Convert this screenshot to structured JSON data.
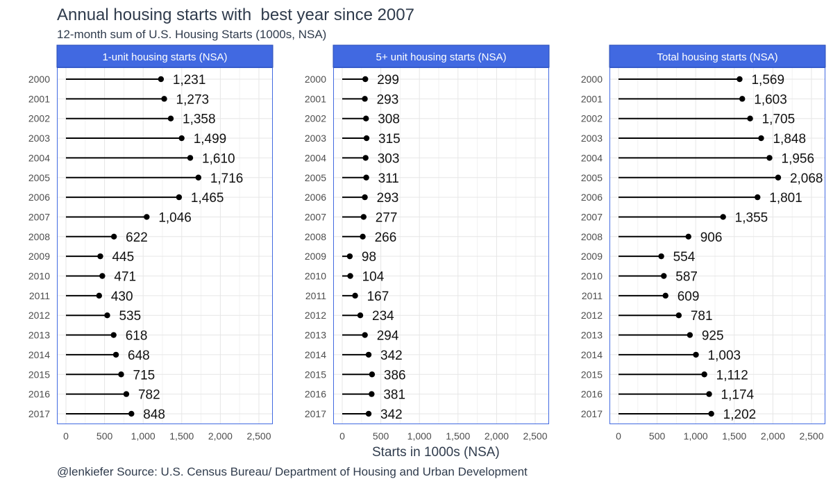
{
  "title": "Annual housing starts with  best year since 2007",
  "subtitle": "12-month sum of U.S. Housing Starts (1000s, NSA)",
  "caption": "@lenkiefer Source: U.S. Census Bureau/ Department of Housing and Urban Development",
  "colors": {
    "strip": "#4169e1",
    "segment": "#000000",
    "grid": "#e6e6e6",
    "panel_border": "#4169e1"
  },
  "chart_data": {
    "type": "lollipop",
    "title": "Annual housing starts with  best year since 2007",
    "subtitle": "12-month sum of U.S. Housing Starts (1000s, NSA)",
    "xlabel": "Starts in 1000s (NSA)",
    "ylabel": "",
    "xlim": [
      0,
      2500
    ],
    "x_ticks": [
      0,
      500,
      1000,
      1500,
      2000,
      2500
    ],
    "x_tick_labels": [
      "0",
      "500",
      "1,000",
      "1,500",
      "2,000",
      "2,500"
    ],
    "grid": true,
    "categories": [
      "2000",
      "2001",
      "2002",
      "2003",
      "2004",
      "2005",
      "2006",
      "2007",
      "2008",
      "2009",
      "2010",
      "2011",
      "2012",
      "2013",
      "2014",
      "2015",
      "2016",
      "2017"
    ],
    "series": [
      {
        "name": "1-unit housing starts (NSA)",
        "values": [
          1231,
          1273,
          1358,
          1499,
          1610,
          1716,
          1465,
          1046,
          622,
          445,
          471,
          430,
          535,
          618,
          648,
          715,
          782,
          848
        ],
        "labels": [
          "1,231",
          "1,273",
          "1,358",
          "1,499",
          "1,610",
          "1,716",
          "1,465",
          "1,046",
          "622",
          "445",
          "471",
          "430",
          "535",
          "618",
          "648",
          "715",
          "782",
          "848"
        ]
      },
      {
        "name": "5+ unit housing starts (NSA)",
        "values": [
          299,
          293,
          308,
          315,
          303,
          311,
          293,
          277,
          266,
          98,
          104,
          167,
          234,
          294,
          342,
          386,
          381,
          342
        ],
        "labels": [
          "299",
          "293",
          "308",
          "315",
          "303",
          "311",
          "293",
          "277",
          "266",
          "98",
          "104",
          "167",
          "234",
          "294",
          "342",
          "386",
          "381",
          "342"
        ]
      },
      {
        "name": "Total housing starts (NSA)",
        "values": [
          1569,
          1603,
          1705,
          1848,
          1956,
          2068,
          1801,
          1355,
          906,
          554,
          587,
          609,
          781,
          925,
          1003,
          1112,
          1174,
          1202
        ],
        "labels": [
          "1,569",
          "1,603",
          "1,705",
          "1,848",
          "1,956",
          "2,068",
          "1,801",
          "1,355",
          "906",
          "554",
          "587",
          "609",
          "781",
          "925",
          "1,003",
          "1,112",
          "1,174",
          "1,202"
        ]
      }
    ]
  }
}
